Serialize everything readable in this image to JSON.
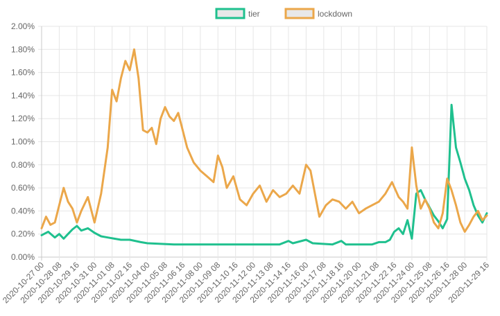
{
  "chart_data": {
    "type": "line",
    "legend": {
      "position": "top",
      "items": [
        {
          "label": "tier",
          "color": "#1fc08e"
        },
        {
          "label": "lockdown",
          "color": "#eba74a"
        }
      ]
    },
    "yaxis": {
      "range": [
        0,
        2.0
      ],
      "ticks": [
        "0.00%",
        "0.20%",
        "0.40%",
        "0.60%",
        "0.80%",
        "1.00%",
        "1.20%",
        "1.40%",
        "1.60%",
        "1.80%",
        "2.00%"
      ]
    },
    "xaxis": {
      "range": [
        "2020-10-27 00:00",
        "2020-11-29 16:00"
      ],
      "ticks": [
        "2020-10-27 00",
        "2020-10-28 08",
        "2020-10-29 16",
        "2020-10-31 00",
        "2020-11-01 08",
        "2020-11-02 16",
        "2020-11-04 00",
        "2020-11-05 08",
        "2020-11-06 16",
        "2020-11-08 00",
        "2020-11-09 08",
        "2020-11-10 16",
        "2020-11-12 00",
        "2020-11-13 08",
        "2020-11-14 16",
        "2020-11-16 00",
        "2020-11-17 08",
        "2020-11-18 16",
        "2020-11-20 00",
        "2020-11-21 08",
        "2020-11-22 16",
        "2020-11-24 00",
        "2020-11-25 08",
        "2020-11-26 16",
        "2020-11-28 00",
        "2020-11-29 16"
      ]
    },
    "grid": true,
    "series": [
      {
        "name": "tier",
        "color": "#1fc08e",
        "x": [
          "2020-10-27 00:00",
          "2020-10-27 12:00",
          "2020-10-28 00:00",
          "2020-10-28 08:00",
          "2020-10-28 16:00",
          "2020-10-29 00:00",
          "2020-10-29 08:00",
          "2020-10-29 16:00",
          "2020-10-30 00:00",
          "2020-10-30 12:00",
          "2020-10-31 00:00",
          "2020-10-31 12:00",
          "2020-11-01 00:00",
          "2020-11-01 12:00",
          "2020-11-02 00:00",
          "2020-11-02 16:00",
          "2020-11-03 12:00",
          "2020-11-04 00:00",
          "2020-11-06 00:00",
          "2020-11-10 00:00",
          "2020-11-14 00:00",
          "2020-11-14 16:00",
          "2020-11-15 00:00",
          "2020-11-16 00:00",
          "2020-11-16 12:00",
          "2020-11-18 00:00",
          "2020-11-18 16:00",
          "2020-11-19 00:00",
          "2020-11-21 00:00",
          "2020-11-21 12:00",
          "2020-11-22 00:00",
          "2020-11-22 08:00",
          "2020-11-22 16:00",
          "2020-11-23 00:00",
          "2020-11-23 08:00",
          "2020-11-23 16:00",
          "2020-11-24 00:00",
          "2020-11-24 08:00",
          "2020-11-24 16:00",
          "2020-11-25 00:00",
          "2020-11-25 08:00",
          "2020-11-25 16:00",
          "2020-11-26 00:00",
          "2020-11-26 08:00",
          "2020-11-26 16:00",
          "2020-11-27 00:00",
          "2020-11-27 08:00",
          "2020-11-27 16:00",
          "2020-11-28 00:00",
          "2020-11-28 08:00",
          "2020-11-28 16:00",
          "2020-11-29 00:00",
          "2020-11-29 08:00",
          "2020-11-29 16:00"
        ],
        "y": [
          0.19,
          0.22,
          0.17,
          0.2,
          0.16,
          0.2,
          0.24,
          0.27,
          0.23,
          0.25,
          0.21,
          0.18,
          0.17,
          0.16,
          0.15,
          0.15,
          0.13,
          0.12,
          0.11,
          0.11,
          0.11,
          0.14,
          0.12,
          0.15,
          0.12,
          0.11,
          0.14,
          0.11,
          0.11,
          0.13,
          0.13,
          0.15,
          0.22,
          0.25,
          0.2,
          0.32,
          0.16,
          0.55,
          0.58,
          0.5,
          0.43,
          0.36,
          0.31,
          0.25,
          0.33,
          1.32,
          0.95,
          0.82,
          0.68,
          0.58,
          0.45,
          0.36,
          0.3,
          0.38
        ]
      },
      {
        "name": "lockdown",
        "color": "#eba74a",
        "x": [
          "2020-10-27 00:00",
          "2020-10-27 08:00",
          "2020-10-27 16:00",
          "2020-10-28 00:00",
          "2020-10-28 08:00",
          "2020-10-28 16:00",
          "2020-10-29 00:00",
          "2020-10-29 08:00",
          "2020-10-29 16:00",
          "2020-10-30 00:00",
          "2020-10-30 12:00",
          "2020-10-31 00:00",
          "2020-10-31 12:00",
          "2020-11-01 00:00",
          "2020-11-01 08:00",
          "2020-11-01 16:00",
          "2020-11-02 00:00",
          "2020-11-02 08:00",
          "2020-11-02 16:00",
          "2020-11-03 00:00",
          "2020-11-03 08:00",
          "2020-11-03 16:00",
          "2020-11-04 00:00",
          "2020-11-04 08:00",
          "2020-11-04 16:00",
          "2020-11-05 00:00",
          "2020-11-05 08:00",
          "2020-11-05 16:00",
          "2020-11-06 00:00",
          "2020-11-06 08:00",
          "2020-11-06 16:00",
          "2020-11-07 00:00",
          "2020-11-07 12:00",
          "2020-11-08 00:00",
          "2020-11-08 12:00",
          "2020-11-09 00:00",
          "2020-11-09 08:00",
          "2020-11-09 16:00",
          "2020-11-10 00:00",
          "2020-11-10 12:00",
          "2020-11-11 00:00",
          "2020-11-11 12:00",
          "2020-11-12 00:00",
          "2020-11-12 12:00",
          "2020-11-13 00:00",
          "2020-11-13 12:00",
          "2020-11-14 00:00",
          "2020-11-14 12:00",
          "2020-11-15 00:00",
          "2020-11-15 12:00",
          "2020-11-16 00:00",
          "2020-11-16 08:00",
          "2020-11-16 16:00",
          "2020-11-17 00:00",
          "2020-11-17 12:00",
          "2020-11-18 00:00",
          "2020-11-18 12:00",
          "2020-11-19 00:00",
          "2020-11-19 12:00",
          "2020-11-20 00:00",
          "2020-11-20 12:00",
          "2020-11-21 00:00",
          "2020-11-21 12:00",
          "2020-11-22 00:00",
          "2020-11-22 12:00",
          "2020-11-23 00:00",
          "2020-11-23 08:00",
          "2020-11-23 16:00",
          "2020-11-24 00:00",
          "2020-11-24 08:00",
          "2020-11-24 16:00",
          "2020-11-25 00:00",
          "2020-11-25 08:00",
          "2020-11-25 16:00",
          "2020-11-26 00:00",
          "2020-11-26 08:00",
          "2020-11-26 16:00",
          "2020-11-27 00:00",
          "2020-11-27 08:00",
          "2020-11-27 16:00",
          "2020-11-28 00:00",
          "2020-11-28 08:00",
          "2020-11-28 16:00",
          "2020-11-29 00:00",
          "2020-11-29 08:00",
          "2020-11-29 16:00"
        ],
        "y": [
          0.25,
          0.35,
          0.28,
          0.3,
          0.45,
          0.6,
          0.48,
          0.42,
          0.3,
          0.4,
          0.52,
          0.3,
          0.55,
          0.95,
          1.45,
          1.35,
          1.55,
          1.7,
          1.62,
          1.8,
          1.55,
          1.1,
          1.08,
          1.12,
          0.98,
          1.2,
          1.3,
          1.22,
          1.18,
          1.25,
          1.1,
          0.95,
          0.82,
          0.75,
          0.7,
          0.65,
          0.88,
          0.78,
          0.6,
          0.7,
          0.5,
          0.45,
          0.55,
          0.62,
          0.48,
          0.58,
          0.52,
          0.55,
          0.62,
          0.55,
          0.8,
          0.75,
          0.55,
          0.35,
          0.45,
          0.5,
          0.48,
          0.42,
          0.48,
          0.38,
          0.42,
          0.45,
          0.48,
          0.55,
          0.65,
          0.52,
          0.48,
          0.42,
          0.95,
          0.62,
          0.42,
          0.5,
          0.42,
          0.3,
          0.25,
          0.38,
          0.68,
          0.58,
          0.45,
          0.3,
          0.22,
          0.28,
          0.35,
          0.4,
          0.32,
          0.36
        ]
      }
    ]
  }
}
